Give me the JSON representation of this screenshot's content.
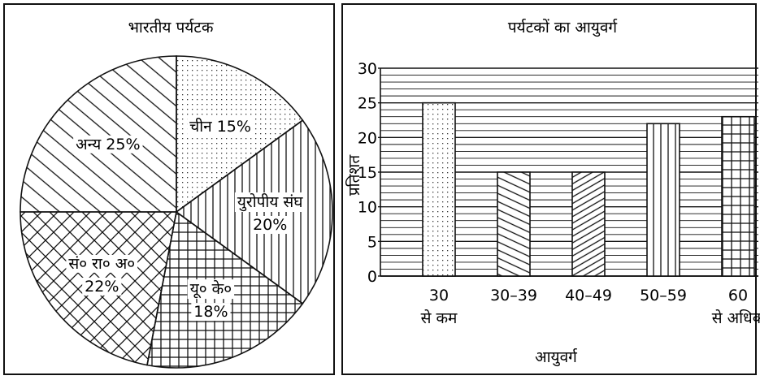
{
  "chart_data": [
    {
      "type": "pie",
      "title": "भारतीय पर्यटक",
      "slices": [
        {
          "label": "चीन",
          "value": 15,
          "value_text": "15%",
          "pattern": "dots"
        },
        {
          "label": "युरोपीय संघ",
          "value": 20,
          "value_text": "20%",
          "pattern": "vertical-lines"
        },
        {
          "label": "यू० के०",
          "value": 18,
          "value_text": "18%",
          "pattern": "grid"
        },
        {
          "label": "सं० रा० अ०",
          "value": 22,
          "value_text": "22%",
          "pattern": "crosshatch"
        },
        {
          "label": "अन्य",
          "value": 25,
          "value_text": "25%",
          "pattern": "diagonal-lines"
        }
      ]
    },
    {
      "type": "bar",
      "title": "पर्यटकों का आयुवर्ग",
      "xlabel": "आयुवर्ग",
      "ylabel": "प्रतिशत",
      "ylim": [
        0,
        30
      ],
      "yticks": [
        0,
        5,
        10,
        15,
        20,
        25,
        30
      ],
      "grid": "horizontal-lines",
      "categories": [
        {
          "line1": "30",
          "line2": "से कम"
        },
        {
          "line1": "30–39",
          "line2": ""
        },
        {
          "line1": "40–49",
          "line2": ""
        },
        {
          "line1": "50–59",
          "line2": ""
        },
        {
          "line1": "60",
          "line2": "से अधिक"
        }
      ],
      "values": [
        25,
        15,
        15,
        22,
        23
      ],
      "patterns": [
        "dots",
        "diagonal-down",
        "diagonal-up",
        "vertical-lines",
        "grid"
      ]
    }
  ]
}
